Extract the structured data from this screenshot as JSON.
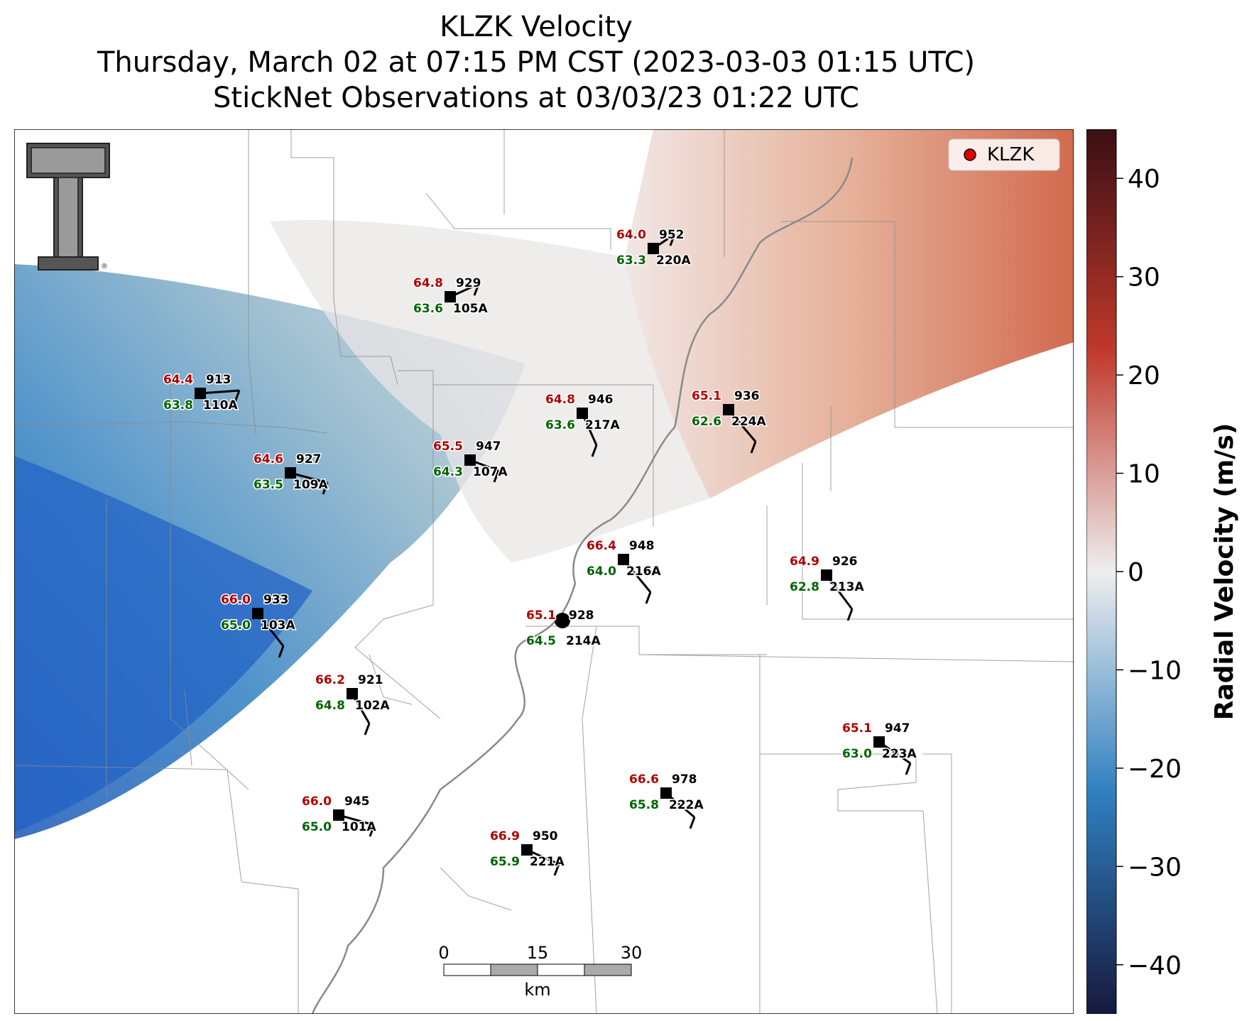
{
  "title": {
    "line1": "KLZK Velocity",
    "line2": "Thursday, March 02 at 07:15 PM CST (2023-03-03 01:15 UTC)",
    "line3": "StickNet Observations at 03/03/23 01:22 UTC"
  },
  "legend": {
    "label": "KLZK",
    "marker_color": "#e00000"
  },
  "colorbar": {
    "label": "Radial Velocity (m/s)",
    "min": -45,
    "max": 45,
    "ticks": [
      40,
      30,
      20,
      10,
      0,
      -10,
      -20,
      -30,
      -40
    ],
    "tick_labels": [
      "40",
      "30",
      "20",
      "10",
      "0",
      "−10",
      "−20",
      "−30",
      "−40"
    ],
    "colors": {
      "positive_max": "#3b0f14",
      "positive_mid": "#c0392b",
      "zero": "#eeeeee",
      "negative_mid": "#2f80c0",
      "negative_max": "#17193e"
    }
  },
  "scale_bar": {
    "ticks": [
      "0",
      "15",
      "30"
    ],
    "unit": "km"
  },
  "logo": {
    "name": "texas-tech-double-t-logo"
  },
  "stations": [
    {
      "id": "952",
      "temp": "64.0",
      "dew": "63.3",
      "name": "220A"
    },
    {
      "id": "929",
      "temp": "64.8",
      "dew": "63.6",
      "name": "105A"
    },
    {
      "id": "913",
      "temp": "64.4",
      "dew": "63.8",
      "name": "110A"
    },
    {
      "id": "946",
      "temp": "64.8",
      "dew": "63.6",
      "name": "217A"
    },
    {
      "id": "936",
      "temp": "65.1",
      "dew": "62.6",
      "name": "224A"
    },
    {
      "id": "947",
      "temp": "65.5",
      "dew": "64.3",
      "name": "107A"
    },
    {
      "id": "927",
      "temp": "64.6",
      "dew": "63.5",
      "name": "109A"
    },
    {
      "id": "948",
      "temp": "66.4",
      "dew": "64.0",
      "name": "216A"
    },
    {
      "id": "926",
      "temp": "64.9",
      "dew": "62.8",
      "name": "213A"
    },
    {
      "id": "933",
      "temp": "66.0",
      "dew": "65.0",
      "name": "103A"
    },
    {
      "id": "928",
      "temp": "65.1",
      "dew": "64.5",
      "name": "214A"
    },
    {
      "id": "921",
      "temp": "66.2",
      "dew": "64.8",
      "name": "102A"
    },
    {
      "id": "947",
      "temp": "65.1",
      "dew": "63.0",
      "name": "223A"
    },
    {
      "id": "978",
      "temp": "66.6",
      "dew": "65.8",
      "name": "222A"
    },
    {
      "id": "945",
      "temp": "66.0",
      "dew": "65.0",
      "name": "101A"
    },
    {
      "id": "950",
      "temp": "66.9",
      "dew": "65.9",
      "name": "221A"
    }
  ]
}
